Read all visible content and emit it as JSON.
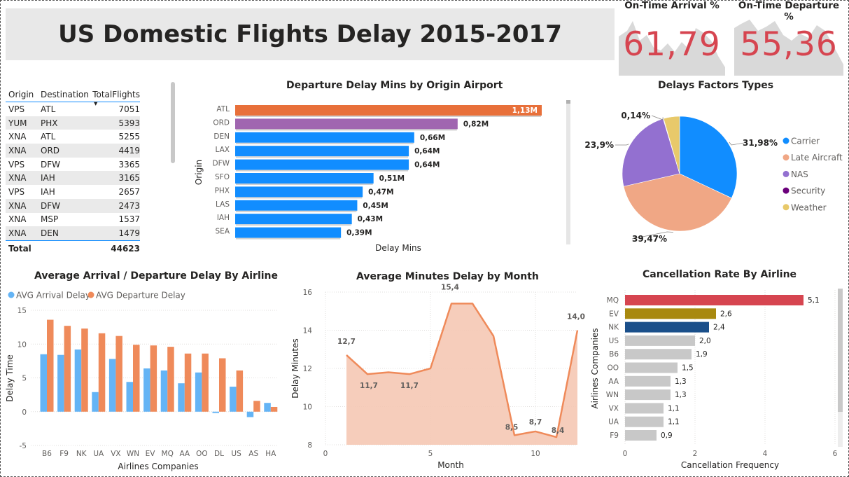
{
  "header": {
    "title": "US Domestic Flights Delay 2015-2017"
  },
  "kpis": [
    {
      "label": "On-Time Arrival %",
      "value": "61,79"
    },
    {
      "label": "On-Time Departure %",
      "value": "55,36"
    }
  ],
  "routes_table": {
    "columns": [
      "Origin",
      "Destination",
      "TotalFlights"
    ],
    "rows": [
      [
        "VPS",
        "ATL",
        "7051"
      ],
      [
        "YUM",
        "PHX",
        "5393"
      ],
      [
        "XNA",
        "ATL",
        "5255"
      ],
      [
        "XNA",
        "ORD",
        "4419"
      ],
      [
        "VPS",
        "DFW",
        "3365"
      ],
      [
        "XNA",
        "IAH",
        "3165"
      ],
      [
        "VPS",
        "IAH",
        "2657"
      ],
      [
        "XNA",
        "DFW",
        "2473"
      ],
      [
        "XNA",
        "MSP",
        "1537"
      ],
      [
        "XNA",
        "DEN",
        "1479"
      ]
    ],
    "total_label": "Total",
    "total_value": "44623"
  },
  "chart_data": [
    {
      "id": "departure_delay",
      "type": "bar",
      "orientation": "horizontal",
      "title": "Departure Delay Mins by Origin Airport",
      "xlabel": "Delay Mins",
      "ylabel": "Origin",
      "categories": [
        "ATL",
        "ORD",
        "DEN",
        "LAX",
        "DFW",
        "SFO",
        "PHX",
        "LAS",
        "IAH",
        "SEA"
      ],
      "values": [
        1.13,
        0.82,
        0.66,
        0.64,
        0.64,
        0.51,
        0.47,
        0.45,
        0.43,
        0.39
      ],
      "value_labels": [
        "1,13M",
        "0,82M",
        "0,66M",
        "0,64M",
        "0,64M",
        "0,51M",
        "0,47M",
        "0,45M",
        "0,43M",
        "0,39M"
      ],
      "colors": [
        "#e8703a",
        "#a066b0",
        "#118dff",
        "#118dff",
        "#118dff",
        "#118dff",
        "#118dff",
        "#118dff",
        "#118dff",
        "#118dff"
      ],
      "unit": "M"
    },
    {
      "id": "delay_factors",
      "type": "pie",
      "title": "Delays Factors Types",
      "slices": [
        {
          "name": "Carrier",
          "value": 31.98,
          "label": "31,98%",
          "color": "#118dff"
        },
        {
          "name": "Late Aircraft",
          "value": 39.47,
          "label": "39,47%",
          "color": "#f0a785"
        },
        {
          "name": "NAS",
          "value": 23.9,
          "label": "23,9%",
          "color": "#9370d0"
        },
        {
          "name": "Security",
          "value": 0.14,
          "label": "0,14%",
          "color": "#6b007b"
        },
        {
          "name": "Weather",
          "value": 4.51,
          "label": "",
          "color": "#e8c96a"
        }
      ]
    },
    {
      "id": "avg_delay_airline",
      "type": "bar",
      "title": "Average Arrival / Departure Delay By Airline",
      "xlabel": "Airlines Companies",
      "ylabel": "Delay Time",
      "categories": [
        "B6",
        "F9",
        "NK",
        "UA",
        "VX",
        "WN",
        "EV",
        "MQ",
        "AA",
        "OO",
        "DL",
        "US",
        "AS",
        "HA"
      ],
      "ylim": [
        -5,
        15
      ],
      "yticks": [
        -5,
        0,
        5,
        10,
        15
      ],
      "series": [
        {
          "name": "AVG Arrival Delay",
          "color": "#64b4f5",
          "values": [
            8.5,
            8.4,
            9.2,
            2.9,
            7.8,
            4.4,
            6.4,
            6.1,
            4.2,
            5.8,
            -0.2,
            3.7,
            -0.8,
            1.3
          ]
        },
        {
          "name": "AVG Departure Delay",
          "color": "#ef8a5a",
          "values": [
            13.6,
            12.7,
            12.3,
            11.6,
            11.2,
            9.9,
            9.8,
            9.6,
            8.6,
            8.6,
            7.9,
            6.1,
            1.6,
            0.7
          ]
        }
      ]
    },
    {
      "id": "monthly_delay",
      "type": "area",
      "title": "Average Minutes Delay by Month",
      "xlabel": "Month",
      "ylabel": "Delay Minutes",
      "x": [
        1,
        2,
        3,
        4,
        5,
        6,
        7,
        8,
        9,
        10,
        11,
        12
      ],
      "values": [
        12.7,
        11.7,
        11.8,
        11.7,
        12.0,
        15.4,
        15.4,
        13.7,
        8.5,
        8.7,
        8.4,
        14.0
      ],
      "point_labels": [
        "12,7",
        "11,7",
        "",
        "11,7",
        "",
        "15,4",
        "",
        "",
        "8,5",
        "8,7",
        "8,4",
        "14,0"
      ],
      "xlim": [
        0,
        12
      ],
      "xticks": [
        0,
        5,
        10
      ],
      "ylim": [
        8,
        16
      ],
      "yticks": [
        8,
        10,
        12,
        14,
        16
      ],
      "line_color": "#ef8a5a",
      "fill_color": "#f5c8b4"
    },
    {
      "id": "cancellation_rate",
      "type": "bar",
      "orientation": "horizontal",
      "title": "Cancellation Rate By Airline",
      "xlabel": "Cancellation Frequency",
      "ylabel": "Airlines Companies",
      "categories": [
        "MQ",
        "EV",
        "NK",
        "US",
        "B6",
        "OO",
        "AA",
        "WN",
        "VX",
        "UA",
        "F9"
      ],
      "values": [
        5.1,
        2.6,
        2.4,
        2.0,
        1.9,
        1.5,
        1.3,
        1.3,
        1.1,
        1.1,
        0.9
      ],
      "value_labels": [
        "5,1",
        "2,6",
        "2,4",
        "2,0",
        "1,9",
        "1,5",
        "1,3",
        "1,3",
        "1,1",
        "1,1",
        "0,9"
      ],
      "colors": [
        "#d64550",
        "#a8890f",
        "#1a4f8a",
        "#c8c8c8",
        "#c8c8c8",
        "#c8c8c8",
        "#c8c8c8",
        "#c8c8c8",
        "#c8c8c8",
        "#c8c8c8",
        "#c8c8c8"
      ],
      "xlim": [
        0,
        6
      ],
      "xticks": [
        0,
        2,
        4,
        6
      ]
    }
  ]
}
